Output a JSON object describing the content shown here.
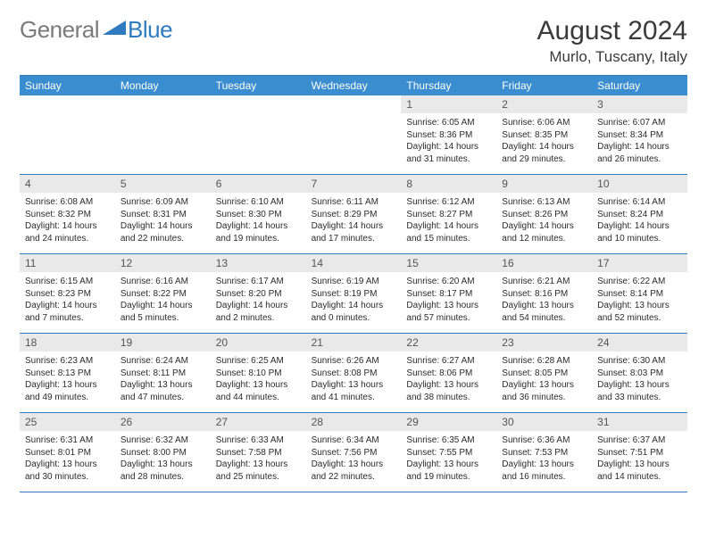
{
  "brand": {
    "part1": "General",
    "part2": "Blue"
  },
  "title": "August 2024",
  "location": "Murlo, Tuscany, Italy",
  "colors": {
    "header_bg": "#3a8dce",
    "rule": "#2f7bbf",
    "daynum_bg": "#e9e9e9",
    "text": "#333333",
    "logo_gray": "#7a7a7a",
    "logo_blue": "#2f7bbf"
  },
  "weekdays": [
    "Sunday",
    "Monday",
    "Tuesday",
    "Wednesday",
    "Thursday",
    "Friday",
    "Saturday"
  ],
  "weeks": [
    [
      null,
      null,
      null,
      null,
      {
        "n": "1",
        "sr": "6:05 AM",
        "ss": "8:36 PM",
        "dl": "14 hours and 31 minutes."
      },
      {
        "n": "2",
        "sr": "6:06 AM",
        "ss": "8:35 PM",
        "dl": "14 hours and 29 minutes."
      },
      {
        "n": "3",
        "sr": "6:07 AM",
        "ss": "8:34 PM",
        "dl": "14 hours and 26 minutes."
      }
    ],
    [
      {
        "n": "4",
        "sr": "6:08 AM",
        "ss": "8:32 PM",
        "dl": "14 hours and 24 minutes."
      },
      {
        "n": "5",
        "sr": "6:09 AM",
        "ss": "8:31 PM",
        "dl": "14 hours and 22 minutes."
      },
      {
        "n": "6",
        "sr": "6:10 AM",
        "ss": "8:30 PM",
        "dl": "14 hours and 19 minutes."
      },
      {
        "n": "7",
        "sr": "6:11 AM",
        "ss": "8:29 PM",
        "dl": "14 hours and 17 minutes."
      },
      {
        "n": "8",
        "sr": "6:12 AM",
        "ss": "8:27 PM",
        "dl": "14 hours and 15 minutes."
      },
      {
        "n": "9",
        "sr": "6:13 AM",
        "ss": "8:26 PM",
        "dl": "14 hours and 12 minutes."
      },
      {
        "n": "10",
        "sr": "6:14 AM",
        "ss": "8:24 PM",
        "dl": "14 hours and 10 minutes."
      }
    ],
    [
      {
        "n": "11",
        "sr": "6:15 AM",
        "ss": "8:23 PM",
        "dl": "14 hours and 7 minutes."
      },
      {
        "n": "12",
        "sr": "6:16 AM",
        "ss": "8:22 PM",
        "dl": "14 hours and 5 minutes."
      },
      {
        "n": "13",
        "sr": "6:17 AM",
        "ss": "8:20 PM",
        "dl": "14 hours and 2 minutes."
      },
      {
        "n": "14",
        "sr": "6:19 AM",
        "ss": "8:19 PM",
        "dl": "14 hours and 0 minutes."
      },
      {
        "n": "15",
        "sr": "6:20 AM",
        "ss": "8:17 PM",
        "dl": "13 hours and 57 minutes."
      },
      {
        "n": "16",
        "sr": "6:21 AM",
        "ss": "8:16 PM",
        "dl": "13 hours and 54 minutes."
      },
      {
        "n": "17",
        "sr": "6:22 AM",
        "ss": "8:14 PM",
        "dl": "13 hours and 52 minutes."
      }
    ],
    [
      {
        "n": "18",
        "sr": "6:23 AM",
        "ss": "8:13 PM",
        "dl": "13 hours and 49 minutes."
      },
      {
        "n": "19",
        "sr": "6:24 AM",
        "ss": "8:11 PM",
        "dl": "13 hours and 47 minutes."
      },
      {
        "n": "20",
        "sr": "6:25 AM",
        "ss": "8:10 PM",
        "dl": "13 hours and 44 minutes."
      },
      {
        "n": "21",
        "sr": "6:26 AM",
        "ss": "8:08 PM",
        "dl": "13 hours and 41 minutes."
      },
      {
        "n": "22",
        "sr": "6:27 AM",
        "ss": "8:06 PM",
        "dl": "13 hours and 38 minutes."
      },
      {
        "n": "23",
        "sr": "6:28 AM",
        "ss": "8:05 PM",
        "dl": "13 hours and 36 minutes."
      },
      {
        "n": "24",
        "sr": "6:30 AM",
        "ss": "8:03 PM",
        "dl": "13 hours and 33 minutes."
      }
    ],
    [
      {
        "n": "25",
        "sr": "6:31 AM",
        "ss": "8:01 PM",
        "dl": "13 hours and 30 minutes."
      },
      {
        "n": "26",
        "sr": "6:32 AM",
        "ss": "8:00 PM",
        "dl": "13 hours and 28 minutes."
      },
      {
        "n": "27",
        "sr": "6:33 AM",
        "ss": "7:58 PM",
        "dl": "13 hours and 25 minutes."
      },
      {
        "n": "28",
        "sr": "6:34 AM",
        "ss": "7:56 PM",
        "dl": "13 hours and 22 minutes."
      },
      {
        "n": "29",
        "sr": "6:35 AM",
        "ss": "7:55 PM",
        "dl": "13 hours and 19 minutes."
      },
      {
        "n": "30",
        "sr": "6:36 AM",
        "ss": "7:53 PM",
        "dl": "13 hours and 16 minutes."
      },
      {
        "n": "31",
        "sr": "6:37 AM",
        "ss": "7:51 PM",
        "dl": "13 hours and 14 minutes."
      }
    ]
  ],
  "labels": {
    "sunrise": "Sunrise: ",
    "sunset": "Sunset: ",
    "daylight": "Daylight: "
  }
}
